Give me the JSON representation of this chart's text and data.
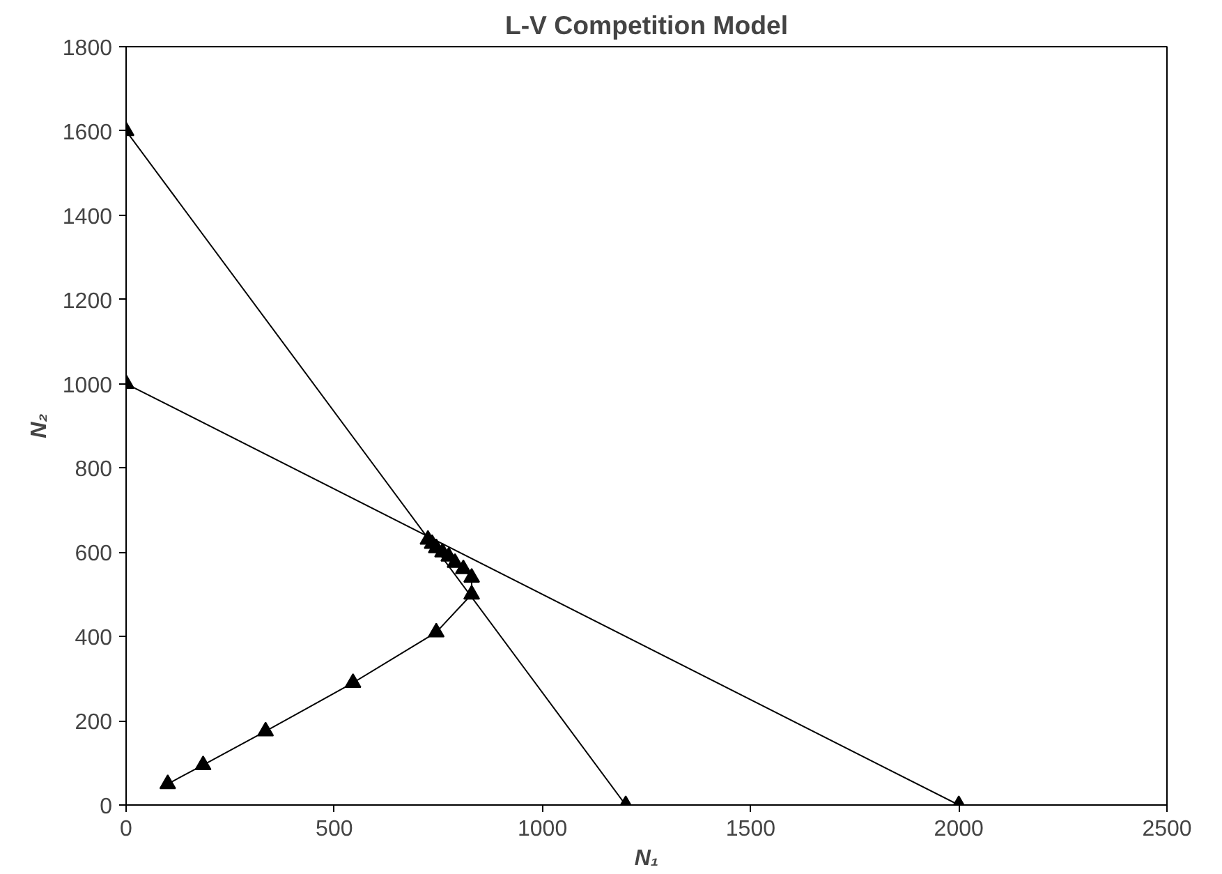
{
  "chart_data": {
    "type": "line",
    "title": "L-V Competition Model",
    "xlabel": "N₁",
    "ylabel": "N₂",
    "xlim": [
      0,
      2500
    ],
    "xticks": [
      0,
      500,
      1000,
      1500,
      2000,
      2500
    ],
    "ylim": [
      0,
      1800
    ],
    "yticks": [
      0,
      200,
      400,
      600,
      800,
      1000,
      1200,
      1400,
      1600,
      1800
    ],
    "grid": false,
    "marker": "triangle",
    "line_style": "solid",
    "series": [
      {
        "color": "#000000",
        "x": [
          0,
          1200
        ],
        "values": [
          1600,
          0
        ]
      },
      {
        "color": "#000000",
        "x": [
          0,
          2000
        ],
        "values": [
          1000,
          0
        ]
      },
      {
        "color": "#000000",
        "x": [
          100,
          185,
          335,
          545,
          745,
          830,
          830,
          810,
          790,
          775,
          760,
          745,
          735,
          725
        ],
        "values": [
          50,
          95,
          175,
          290,
          410,
          500,
          540,
          560,
          575,
          590,
          600,
          610,
          620,
          630
        ]
      }
    ]
  }
}
